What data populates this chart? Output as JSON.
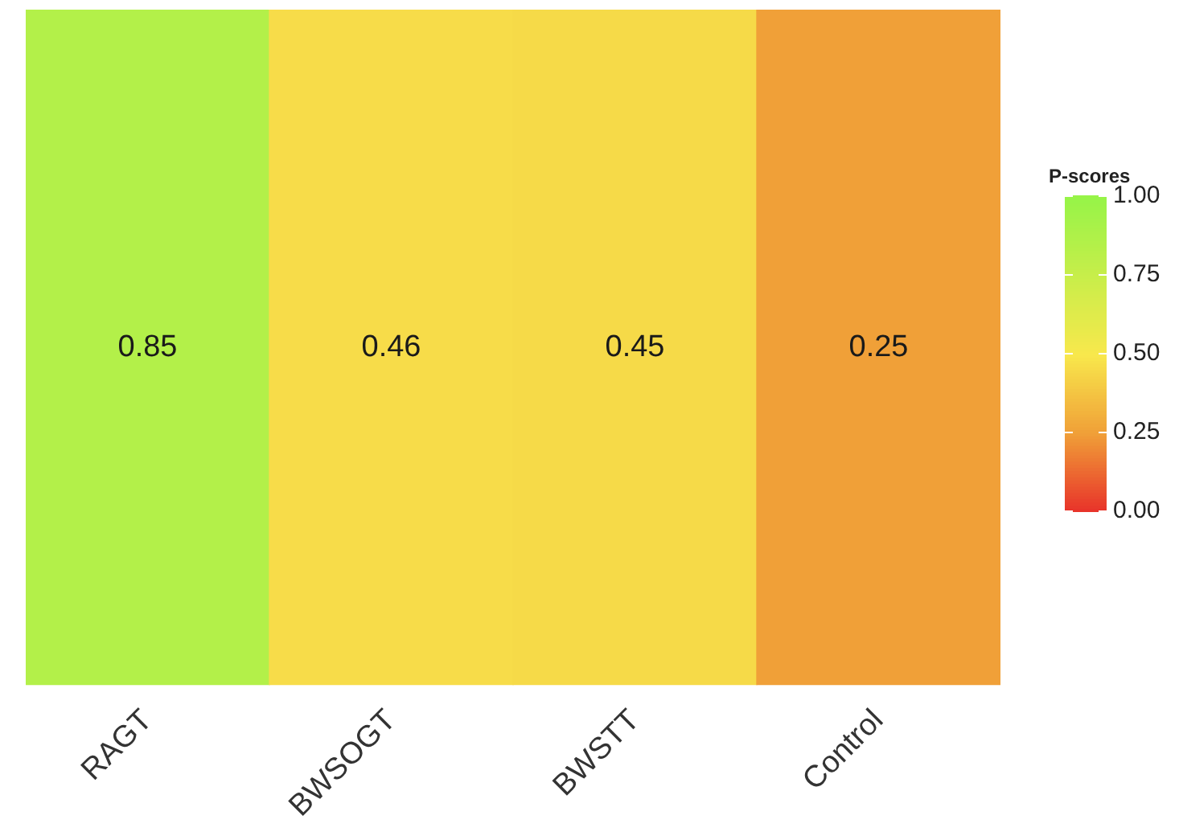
{
  "chart_data": {
    "type": "heatmap",
    "clabel": "P-scores",
    "categories": [
      "RAGT",
      "BWSOGT",
      "BWSTT",
      "Control"
    ],
    "y_categories": [
      null
    ],
    "cells": [
      [
        0.85,
        0.46,
        0.45,
        0.25
      ]
    ],
    "clim": [
      0,
      1
    ],
    "cticks": [
      {
        "value": 0,
        "label": "0.00"
      },
      {
        "value": 0.25,
        "label": "0.25"
      },
      {
        "value": 0.5,
        "label": "0.50"
      },
      {
        "value": 0.75,
        "label": "0.75"
      },
      {
        "value": 1,
        "label": "1.00"
      }
    ],
    "data_labels": true
  }
}
